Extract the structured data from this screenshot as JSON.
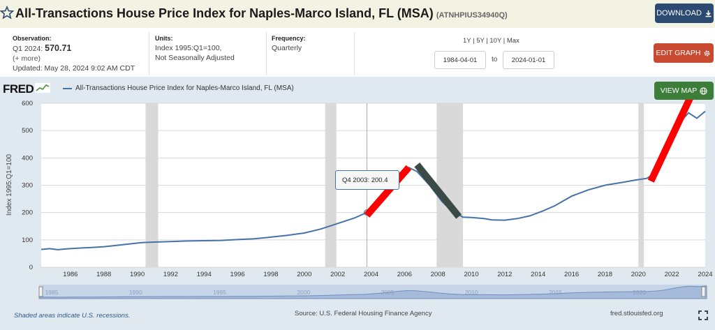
{
  "header": {
    "title": "All-Transactions House Price Index for Naples-Marco Island, FL (MSA)",
    "series_id": "(ATNHPIUS34940Q)",
    "download_label": "DOWNLOAD",
    "star_icon": "star-outline-icon",
    "download_icon": "download-icon"
  },
  "info": {
    "observation_label": "Observation:",
    "observation_period": "Q1 2024:",
    "observation_value": "570.71",
    "more_label": "(+ more)",
    "updated_label": "Updated:",
    "updated_value": "May 28, 2024 9:02 AM CDT",
    "units_label": "Units:",
    "units_line1": "Index 1995:Q1=100,",
    "units_line2": "Not Seasonally Adjusted",
    "frequency_label": "Frequency:",
    "frequency_value": "Quarterly",
    "range_links": "1Y | 5Y | 10Y | Max",
    "start_date": "1984-04-01",
    "to_label": "to",
    "end_date": "2024-01-01",
    "edit_label": "EDIT GRAPH",
    "edit_icon": "gear-icon"
  },
  "chart_header": {
    "logo": "FRED",
    "legend_label": "All-Transactions House Price Index for Naples-Marco Island, FL (MSA)",
    "view_map_label": "VIEW MAP",
    "globe_icon": "globe-icon"
  },
  "tooltip": {
    "period": "Q4 2003:",
    "value": "200.4"
  },
  "colors": {
    "series": "#4572a7",
    "recession": "#d9d9d9",
    "annotation_up": "#ff0000",
    "annotation_down": "#3a4a44",
    "download_btn": "#2b4a72",
    "edit_btn": "#c84b31",
    "view_map_btn": "#3c7d3a"
  },
  "footer": {
    "recession_note": "Shaded areas indicate U.S. recessions.",
    "source": "Source: U.S. Federal Housing Finance Agency",
    "site": "fred.stlouisfed.org",
    "fullscreen_icon": "fullscreen-icon"
  },
  "chart_data": {
    "type": "line",
    "ylabel": "Index 1995:Q1=100",
    "ylim": [
      0,
      600
    ],
    "yticks": [
      0,
      100,
      200,
      300,
      400,
      500,
      600
    ],
    "xlim": [
      1984.25,
      2024.0
    ],
    "xticks": [
      "1986",
      "1988",
      "1990",
      "1992",
      "1994",
      "1996",
      "1998",
      "2000",
      "2002",
      "2004",
      "2006",
      "2008",
      "2010",
      "2012",
      "2014",
      "2016",
      "2018",
      "2020",
      "2022",
      "2024"
    ],
    "grid": "horizontal",
    "legend": "top-left",
    "recessions": [
      [
        1990.5,
        1991.25
      ],
      [
        2001.25,
        2001.92
      ],
      [
        2007.92,
        2009.5
      ],
      [
        2020.0,
        2020.33
      ]
    ],
    "navigator_ticks": [
      "1985",
      "1990",
      "1995",
      "2000",
      "2005",
      "2010",
      "2015",
      "2020"
    ],
    "series": [
      {
        "name": "All-Transactions House Price Index for Naples-Marco Island, FL (MSA)",
        "x": [
          1984.25,
          1984.75,
          1985.25,
          1985.75,
          1986.5,
          1987.25,
          1988.0,
          1988.75,
          1989.5,
          1990.25,
          1991.0,
          1992.0,
          1993.0,
          1994.0,
          1995.0,
          1996.0,
          1997.0,
          1998.0,
          1999.0,
          2000.0,
          2001.0,
          2002.0,
          2003.0,
          2003.75,
          2004.5,
          2005.25,
          2005.75,
          2006.25,
          2006.75,
          2007.5,
          2008.25,
          2008.75,
          2009.5,
          2010.0,
          2010.75,
          2011.25,
          2012.0,
          2012.75,
          2013.5,
          2014.25,
          2015.0,
          2016.0,
          2017.0,
          2018.0,
          2019.0,
          2019.75,
          2020.5,
          2021.0,
          2021.5,
          2022.0,
          2022.5,
          2023.0,
          2023.5,
          2024.0
        ],
        "values": [
          65,
          68,
          64,
          67,
          70,
          72,
          75,
          80,
          85,
          90,
          92,
          94,
          96,
          97,
          98,
          101,
          104,
          110,
          117,
          125,
          140,
          160,
          180,
          200.4,
          240,
          300,
          340,
          365,
          350,
          300,
          240,
          210,
          183,
          182,
          178,
          173,
          172,
          178,
          188,
          205,
          225,
          260,
          283,
          300,
          310,
          318,
          325,
          345,
          390,
          460,
          530,
          565,
          545,
          570.71
        ]
      }
    ],
    "annotations": [
      {
        "label": "",
        "x": [
          2003.75,
          2006.25
        ],
        "y": [
          190,
          365
        ],
        "color": "#ff0000"
      },
      {
        "label": "",
        "x": [
          2006.75,
          2009.25
        ],
        "y": [
          375,
          185
        ],
        "color": "#3a4a44"
      },
      {
        "label": "",
        "x": [
          2020.75,
          2023.25
        ],
        "y": [
          315,
          640
        ],
        "color": "#ff0000"
      }
    ]
  }
}
